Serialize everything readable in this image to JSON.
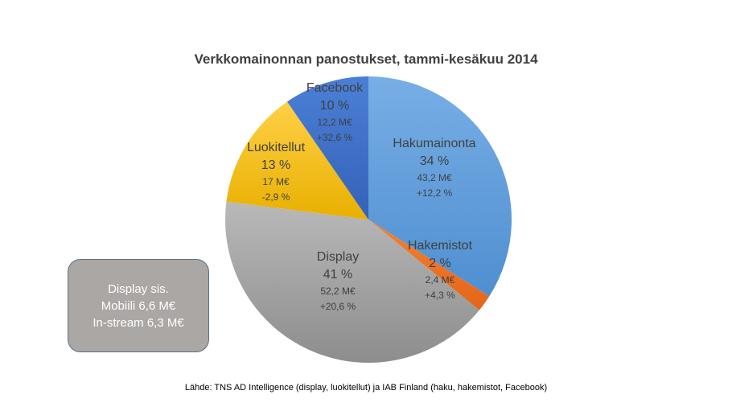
{
  "chart_data": {
    "type": "pie",
    "title": "Verkkomainonnan panostukset, tammi-kesäkuu 2014",
    "slices": [
      {
        "label": "Hakumainonta",
        "percent_label": "34 %",
        "value": 43.2,
        "value_label": "43,2 M€",
        "change_label": "+12,2 %",
        "color": "#63a0dd"
      },
      {
        "label": "Hakemistot",
        "percent_label": "2 %",
        "value": 2.4,
        "value_label": "2,4 M€",
        "change_label": "+4,3 %",
        "color": "#ef7225"
      },
      {
        "label": "Display",
        "percent_label": "41 %",
        "value": 52.2,
        "value_label": "52,2 M€",
        "change_label": "+20,6 %",
        "color": "#a9a9a9"
      },
      {
        "label": "Luokitellut",
        "percent_label": "13 %",
        "value": 17,
        "value_label": "17 M€",
        "change_label": "-2,9 %",
        "color": "#f7c106"
      },
      {
        "label": "Facebook",
        "percent_label": "10 %",
        "value": 12.2,
        "value_label": "12,2 M€",
        "change_label": "+32,6 %",
        "color": "#3f6fcb"
      }
    ]
  },
  "note": {
    "line1": "Display sis.",
    "line2": "Mobiili 6,6 M€",
    "line3": "In-stream 6,3 M€"
  },
  "source": "Lähde: TNS AD Intelligence (display, luokitellut) ja IAB Finland (haku, hakemistot, Facebook)"
}
